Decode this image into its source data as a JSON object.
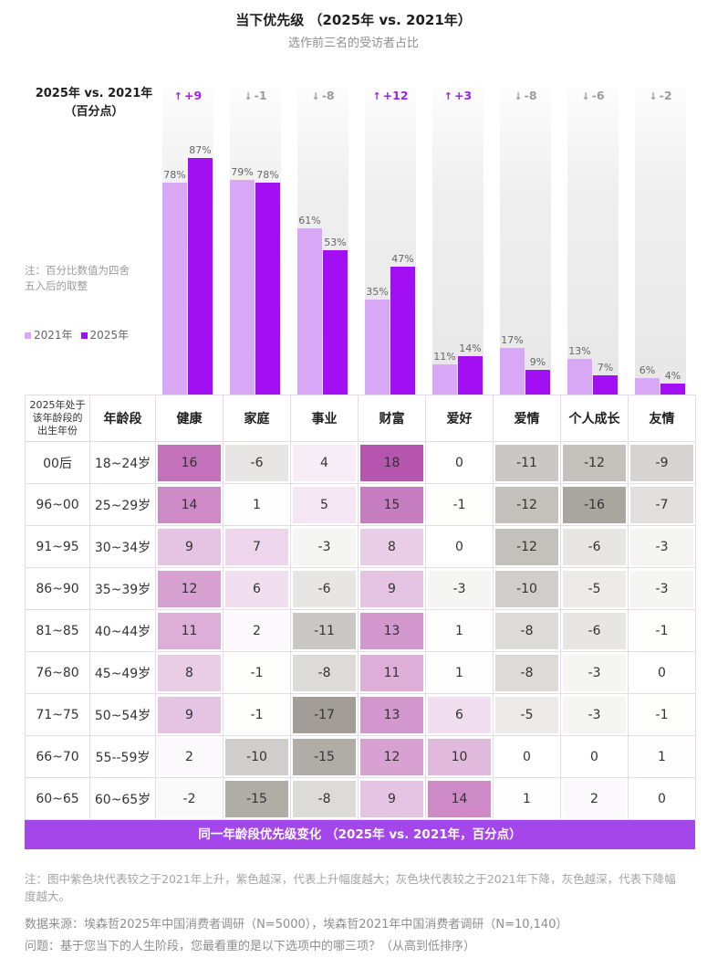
{
  "title": "当下优先级 （2025年 vs. 2021年）",
  "subtitle": "选作前三名的受访者占比",
  "change_label": {
    "line1": "2025年 vs. 2021年",
    "line2": "（百分点）"
  },
  "note_rounding": {
    "line1": "注：百分比数值为四舍",
    "line2": "五入后的取整"
  },
  "colors": {
    "bar_2021": "#d8a8f6",
    "bar_2025": "#a10ff2",
    "increase": "#a21df0",
    "decrease": "#9b9b9b",
    "heat_positive": "#b655ad",
    "heat_negative": "#a29e97",
    "banner": "#a546ea"
  },
  "chart_data": [
    {
      "type": "bar",
      "categories": [
        "健康",
        "家庭",
        "事业",
        "财富",
        "爱好",
        "爱情",
        "个人成长",
        "友情"
      ],
      "series": [
        {
          "name": "2021年",
          "values": [
            78,
            79,
            61,
            35,
            11,
            17,
            13,
            6
          ]
        },
        {
          "name": "2025年",
          "values": [
            87,
            78,
            53,
            47,
            14,
            9,
            7,
            4
          ]
        }
      ],
      "change": [
        "+9",
        "-1",
        "-8",
        "+12",
        "+3",
        "-8",
        "-6",
        "-2"
      ],
      "value_suffix": "%",
      "legend_position": "left",
      "grid": false
    },
    {
      "type": "heatmap",
      "title": "同一年龄段优先级变化 （2025年 vs. 2021年，百分点）",
      "row_header": {
        "birth_lines": [
          "2025年处于",
          "该年龄段的",
          "出生年份"
        ],
        "age": "年龄段"
      },
      "columns": [
        "健康",
        "家庭",
        "事业",
        "财富",
        "爱好",
        "爱情",
        "个人成长",
        "友情"
      ],
      "rows": [
        {
          "birth": "00后",
          "age": "18~24岁",
          "values": [
            16,
            -6,
            4,
            18,
            0,
            -11,
            -12,
            -9
          ]
        },
        {
          "birth": "96~00",
          "age": "25~29岁",
          "values": [
            14,
            1,
            5,
            15,
            -1,
            -12,
            -16,
            -7
          ]
        },
        {
          "birth": "91~95",
          "age": "30~34岁",
          "values": [
            9,
            7,
            -3,
            8,
            0,
            -12,
            -6,
            -3
          ]
        },
        {
          "birth": "86~90",
          "age": "35~39岁",
          "values": [
            12,
            6,
            -6,
            9,
            -3,
            -10,
            -5,
            -3
          ]
        },
        {
          "birth": "81~85",
          "age": "40~44岁",
          "values": [
            11,
            2,
            -11,
            13,
            1,
            -8,
            -6,
            -1
          ]
        },
        {
          "birth": "76~80",
          "age": "45~49岁",
          "values": [
            8,
            -1,
            -8,
            11,
            1,
            -8,
            -3,
            0
          ]
        },
        {
          "birth": "71~75",
          "age": "50~54岁",
          "values": [
            9,
            -1,
            -17,
            13,
            6,
            -5,
            -3,
            -1
          ]
        },
        {
          "birth": "66~70",
          "age": "55--59岁",
          "values": [
            2,
            -10,
            -15,
            12,
            10,
            0,
            0,
            1
          ]
        },
        {
          "birth": "60~65",
          "age": "60~65岁",
          "values": [
            -2,
            -15,
            -8,
            9,
            14,
            1,
            2,
            0
          ]
        }
      ]
    }
  ],
  "footnote": "注：图中紫色块代表较之于2021年上升，紫色越深，代表上升幅度越大；灰色块代表较之于2021年下降，灰色越深，代表下降幅度越大。",
  "source": "数据来源：埃森哲2025年中国消费者调研（N=5000），埃森哲2021年中国消费者调研（N=10,140）",
  "question": "问题：基于您当下的人生阶段，您最看重的是以下选项中的哪三项？（从高到低排序）"
}
